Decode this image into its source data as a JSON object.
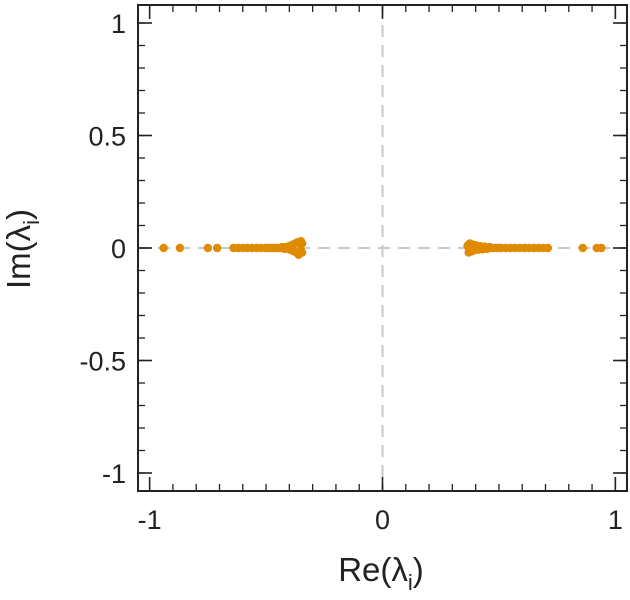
{
  "chart_data": {
    "type": "scatter",
    "xlabel": "Re(λ",
    "xlabel_sub": "i",
    "xlabel_close": ")",
    "ylabel": "Im(λ",
    "ylabel_sub": "i",
    "ylabel_close": ")",
    "xlim": [
      -1.05,
      1.05
    ],
    "ylim": [
      -1.08,
      1.08
    ],
    "xticks": [
      {
        "value": -1,
        "label": "-1"
      },
      {
        "value": 0,
        "label": "0"
      },
      {
        "value": 1,
        "label": "1"
      }
    ],
    "yticks": [
      {
        "value": 1,
        "label": "1"
      },
      {
        "value": 0.5,
        "label": "0.5"
      },
      {
        "value": 0,
        "label": "0"
      },
      {
        "value": -0.5,
        "label": "-0.5"
      },
      {
        "value": -1,
        "label": "-1"
      }
    ],
    "minor_tick_step": 0.1,
    "zero_lines": true,
    "grid": false,
    "marker_color": "#e08a00",
    "points": [
      {
        "x": -0.94,
        "y": 0
      },
      {
        "x": -0.87,
        "y": 0
      },
      {
        "x": -0.75,
        "y": 0
      },
      {
        "x": -0.71,
        "y": 0
      },
      {
        "x": -0.64,
        "y": 0
      },
      {
        "x": -0.62,
        "y": 0
      },
      {
        "x": -0.6,
        "y": 0
      },
      {
        "x": -0.58,
        "y": 0
      },
      {
        "x": -0.56,
        "y": 0
      },
      {
        "x": -0.54,
        "y": 0
      },
      {
        "x": -0.52,
        "y": 0
      },
      {
        "x": -0.5,
        "y": 0
      },
      {
        "x": -0.49,
        "y": 0
      },
      {
        "x": -0.48,
        "y": 0
      },
      {
        "x": -0.47,
        "y": 0
      },
      {
        "x": -0.46,
        "y": 0
      },
      {
        "x": -0.45,
        "y": 0
      },
      {
        "x": -0.44,
        "y": 0
      },
      {
        "x": -0.43,
        "y": 0.004
      },
      {
        "x": -0.42,
        "y": -0.004
      },
      {
        "x": -0.41,
        "y": 0.006
      },
      {
        "x": -0.4,
        "y": -0.006
      },
      {
        "x": -0.395,
        "y": 0.01
      },
      {
        "x": -0.39,
        "y": -0.01
      },
      {
        "x": -0.385,
        "y": 0.015
      },
      {
        "x": -0.38,
        "y": -0.015
      },
      {
        "x": -0.375,
        "y": 0.02
      },
      {
        "x": -0.37,
        "y": -0.02
      },
      {
        "x": -0.365,
        "y": 0.025
      },
      {
        "x": -0.36,
        "y": -0.025
      },
      {
        "x": -0.355,
        "y": 0.015
      },
      {
        "x": -0.35,
        "y": -0.012
      },
      {
        "x": -0.345,
        "y": 0.02
      },
      {
        "x": -0.345,
        "y": -0.02
      },
      {
        "x": -0.35,
        "y": 0.03
      },
      {
        "x": -0.36,
        "y": -0.03
      },
      {
        "x": 0.94,
        "y": 0
      },
      {
        "x": 0.92,
        "y": 0
      },
      {
        "x": 0.86,
        "y": 0
      },
      {
        "x": 0.71,
        "y": 0
      },
      {
        "x": 0.69,
        "y": 0
      },
      {
        "x": 0.67,
        "y": 0
      },
      {
        "x": 0.65,
        "y": 0
      },
      {
        "x": 0.63,
        "y": 0
      },
      {
        "x": 0.61,
        "y": 0
      },
      {
        "x": 0.59,
        "y": 0
      },
      {
        "x": 0.57,
        "y": 0
      },
      {
        "x": 0.55,
        "y": 0
      },
      {
        "x": 0.53,
        "y": 0
      },
      {
        "x": 0.51,
        "y": 0
      },
      {
        "x": 0.5,
        "y": 0
      },
      {
        "x": 0.49,
        "y": 0
      },
      {
        "x": 0.48,
        "y": 0
      },
      {
        "x": 0.47,
        "y": 0
      },
      {
        "x": 0.46,
        "y": 0.004
      },
      {
        "x": 0.45,
        "y": -0.004
      },
      {
        "x": 0.44,
        "y": 0.006
      },
      {
        "x": 0.43,
        "y": -0.006
      },
      {
        "x": 0.42,
        "y": 0.008
      },
      {
        "x": 0.41,
        "y": -0.008
      },
      {
        "x": 0.4,
        "y": 0.012
      },
      {
        "x": 0.39,
        "y": -0.012
      },
      {
        "x": 0.385,
        "y": 0.016
      },
      {
        "x": 0.38,
        "y": -0.016
      },
      {
        "x": 0.375,
        "y": 0.02
      },
      {
        "x": 0.37,
        "y": -0.02
      },
      {
        "x": 0.365,
        "y": 0.01
      },
      {
        "x": 0.37,
        "y": 0.0
      }
    ]
  }
}
